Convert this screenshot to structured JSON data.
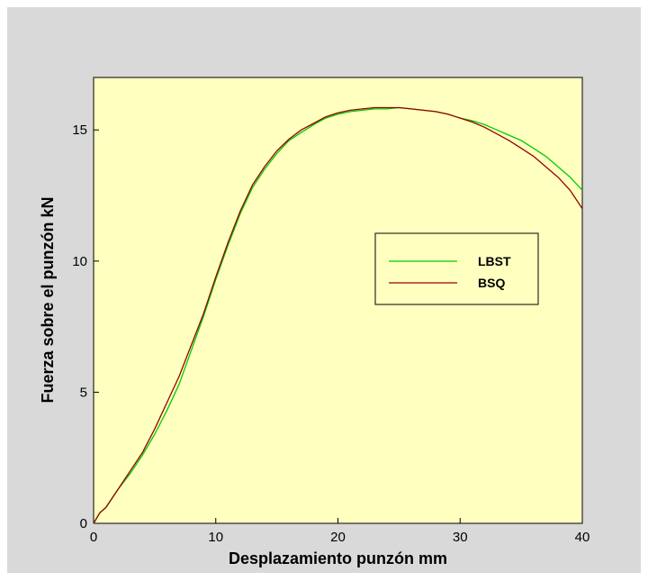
{
  "colors": {
    "panel_bg": "#d9d9d9",
    "plot_bg": "#ffffc0",
    "lbst": "#00cc00",
    "bsq": "#990000"
  },
  "chart_data": {
    "type": "line",
    "title": "",
    "xlabel": "Desplazamiento punzón mm",
    "ylabel": "Fuerza sobre el punzón kN",
    "xlim": [
      0,
      40
    ],
    "ylim": [
      0,
      17
    ],
    "xticks": [
      0,
      10,
      20,
      30,
      40
    ],
    "xtick_labels": [
      "0",
      "10",
      "20",
      "30",
      "40"
    ],
    "yticks": [
      0,
      5,
      10,
      15
    ],
    "ytick_labels": [
      "0",
      "5",
      "10",
      "15"
    ],
    "grid": false,
    "legend": {
      "position": "right-center",
      "entries": [
        "LBST",
        "BSQ"
      ]
    },
    "series": [
      {
        "name": "LBST",
        "x": [
          0,
          0.5,
          1,
          2,
          3,
          4,
          5,
          6,
          7,
          8,
          9,
          10,
          11,
          12,
          13,
          14,
          15,
          16,
          17,
          18,
          19,
          20,
          21,
          22,
          23,
          24,
          25,
          26,
          27,
          28,
          29,
          30,
          31,
          32,
          33,
          34,
          35,
          36,
          37,
          38,
          39,
          40
        ],
        "y": [
          0,
          0.4,
          0.6,
          1.3,
          1.9,
          2.6,
          3.4,
          4.3,
          5.3,
          6.6,
          7.9,
          9.3,
          10.6,
          11.8,
          12.8,
          13.5,
          14.1,
          14.6,
          14.9,
          15.2,
          15.45,
          15.6,
          15.7,
          15.75,
          15.8,
          15.8,
          15.85,
          15.8,
          15.75,
          15.7,
          15.6,
          15.45,
          15.35,
          15.2,
          15.0,
          14.8,
          14.6,
          14.3,
          14.0,
          13.6,
          13.2,
          12.7
        ]
      },
      {
        "name": "BSQ",
        "x": [
          0,
          0.5,
          1,
          2,
          3,
          4,
          5,
          6,
          7,
          8,
          9,
          10,
          11,
          12,
          13,
          14,
          15,
          16,
          17,
          18,
          19,
          20,
          21,
          22,
          23,
          24,
          25,
          26,
          27,
          28,
          29,
          30,
          31,
          32,
          33,
          34,
          35,
          36,
          37,
          38,
          39,
          40
        ],
        "y": [
          0,
          0.4,
          0.6,
          1.3,
          2.0,
          2.7,
          3.6,
          4.6,
          5.6,
          6.8,
          8.0,
          9.4,
          10.7,
          11.9,
          12.9,
          13.6,
          14.2,
          14.65,
          15.0,
          15.25,
          15.5,
          15.65,
          15.75,
          15.8,
          15.85,
          15.85,
          15.85,
          15.8,
          15.75,
          15.7,
          15.6,
          15.45,
          15.3,
          15.1,
          14.85,
          14.6,
          14.3,
          14.0,
          13.6,
          13.2,
          12.7,
          12.0
        ]
      }
    ]
  }
}
